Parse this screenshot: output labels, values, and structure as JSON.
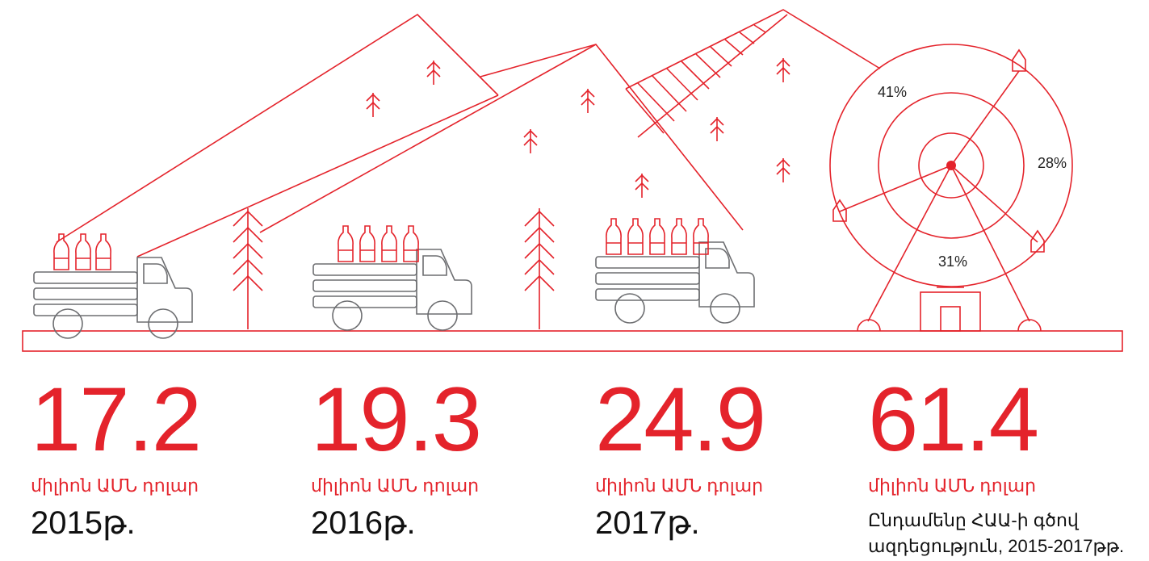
{
  "wheel": {
    "labels": [
      "41%",
      "28%",
      "31%"
    ]
  },
  "stats": [
    {
      "value": "17.2",
      "unit": "միլիոն ԱՄՆ դոլար",
      "period": "2015թ."
    },
    {
      "value": "19.3",
      "unit": "միլիոն ԱՄՆ դոլար",
      "period": "2016թ."
    },
    {
      "value": "24.9",
      "unit": "միլիոն ԱՄՆ դոլար",
      "period": "2017թ."
    },
    {
      "value": "61.4",
      "unit": "միլիոն ԱՄՆ դոլար",
      "period": "Ընդամենը ՀԱԱ-ի գծով ազդեցություն, 2015-2017թթ."
    }
  ]
}
